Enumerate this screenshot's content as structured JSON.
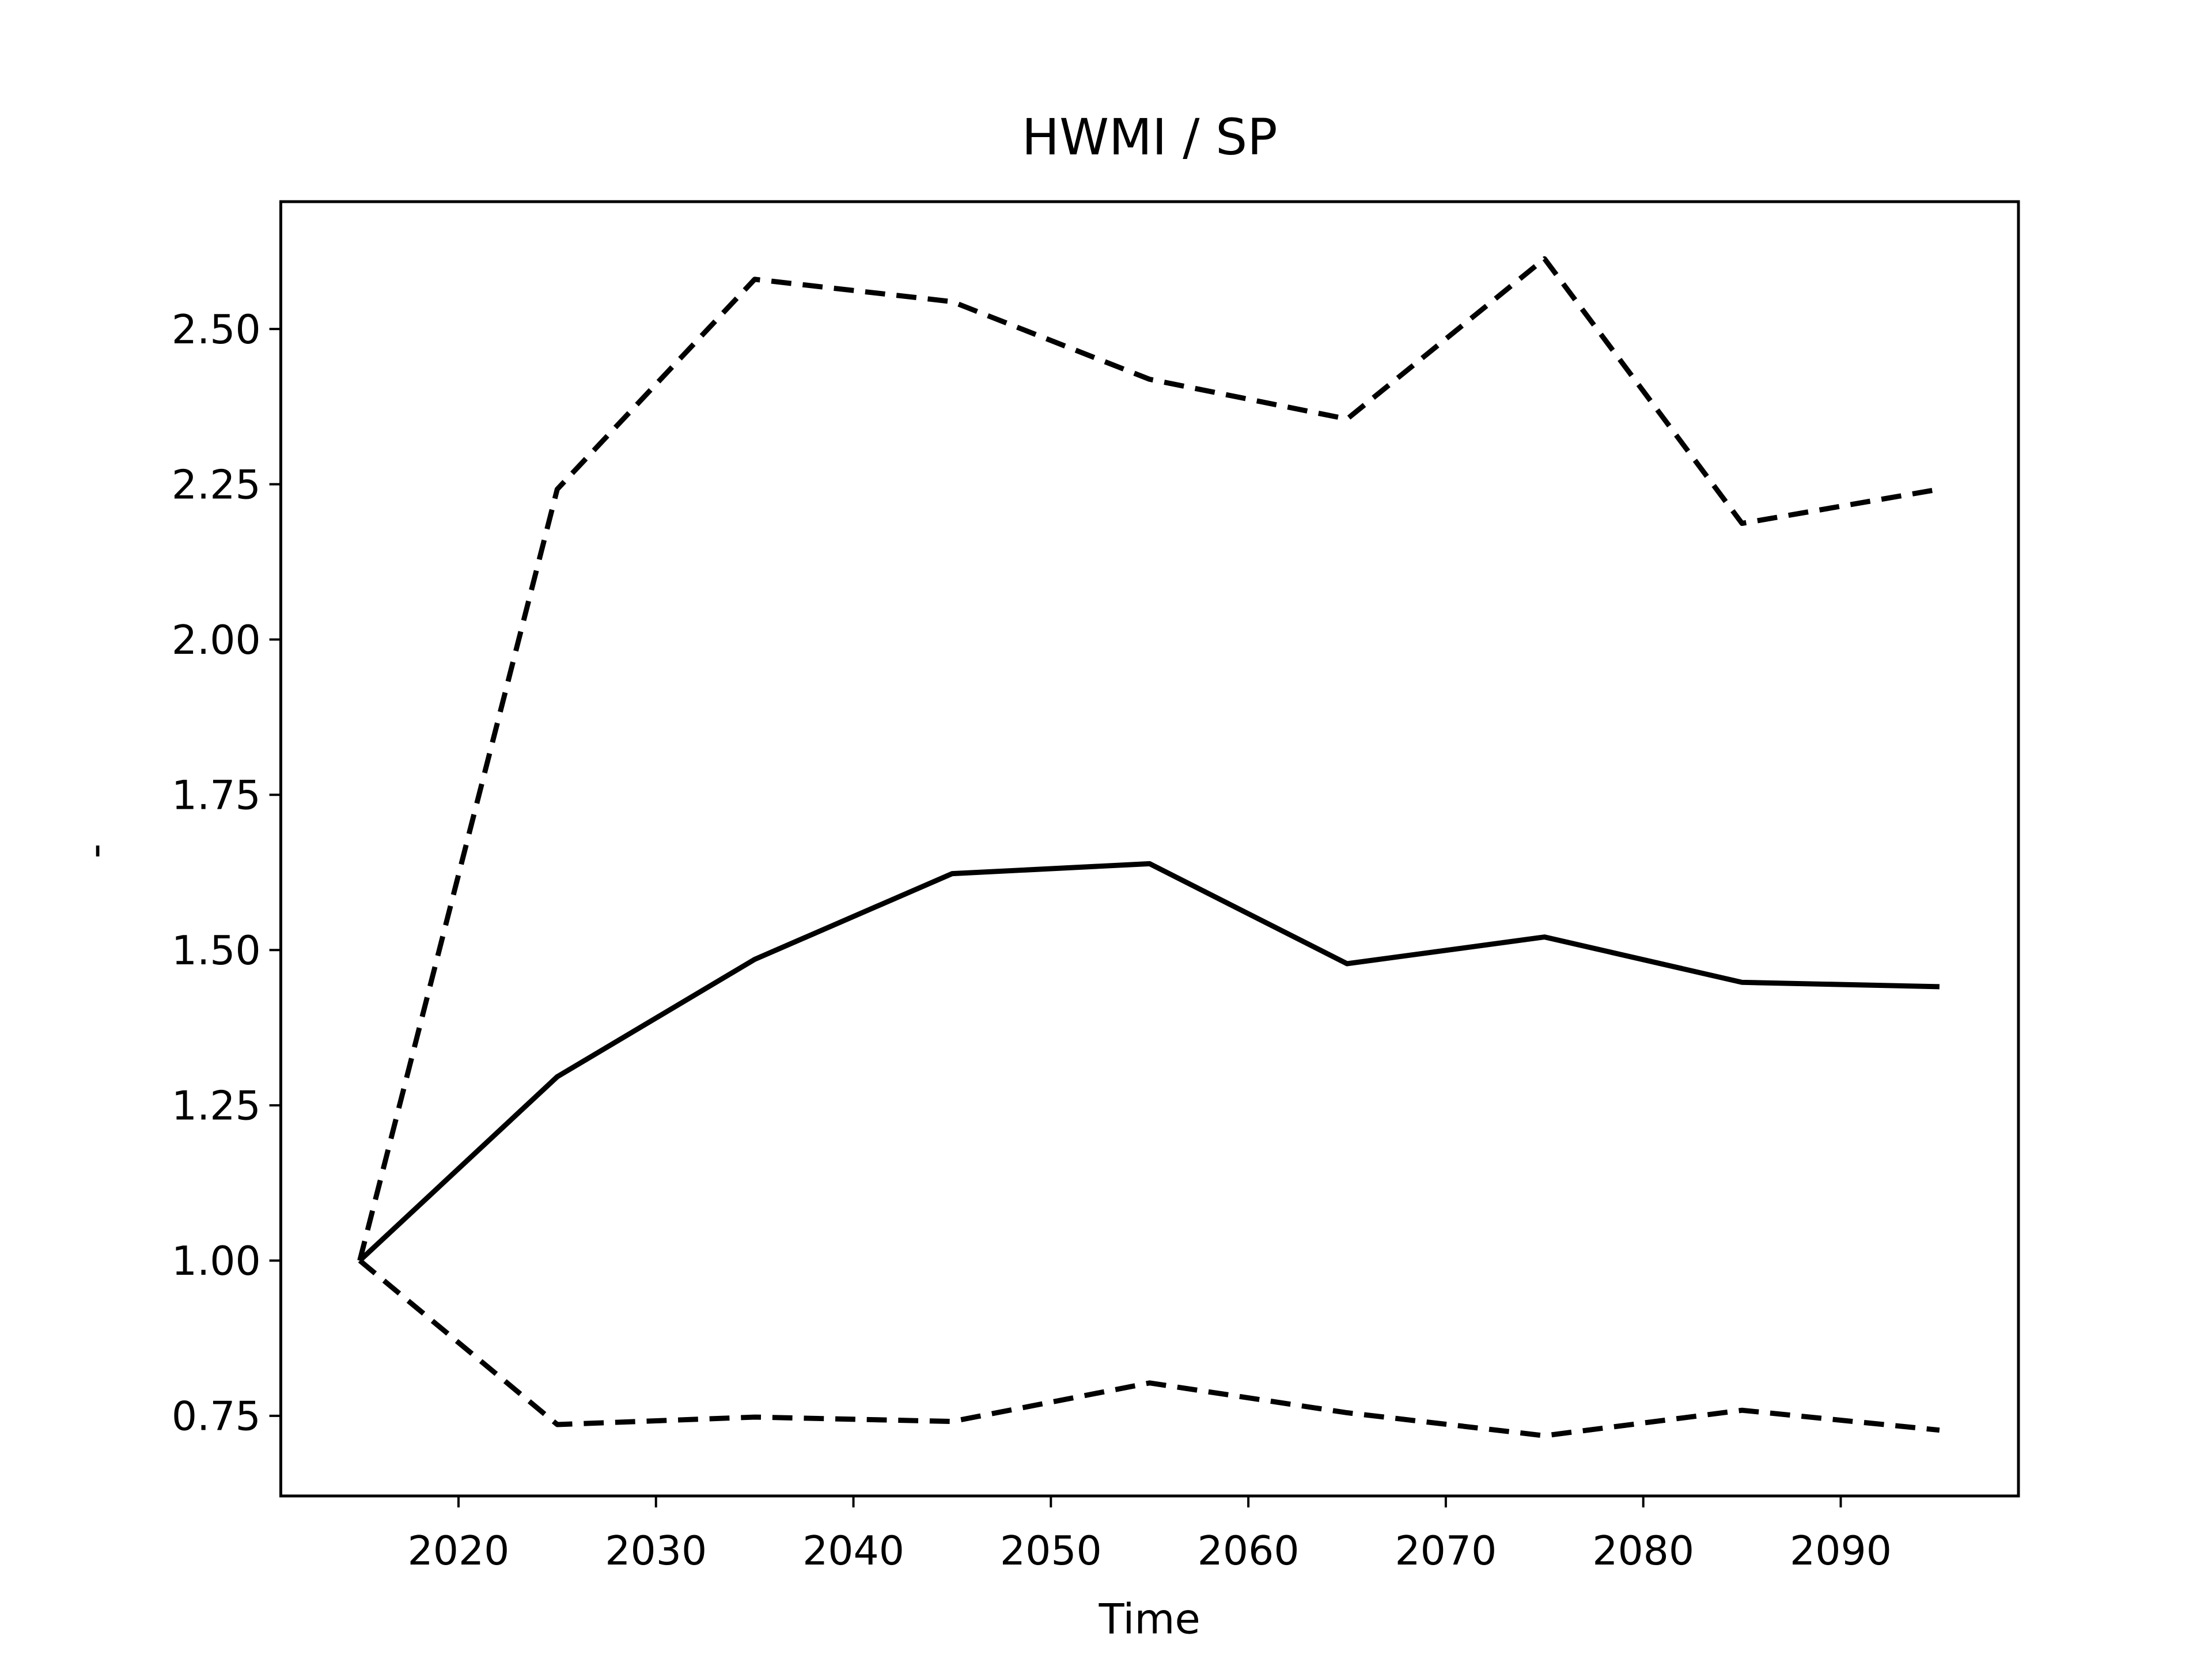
{
  "chart_data": {
    "type": "line",
    "title": "HWMI / SP",
    "xlabel": "Time",
    "ylabel": "-",
    "x": [
      2015,
      2025,
      2035,
      2045,
      2055,
      2065,
      2075,
      2085,
      2095
    ],
    "series": [
      {
        "color": "#000000",
        "dash": false,
        "values": [
          1.0,
          1.296,
          1.485,
          1.623,
          1.639,
          1.478,
          1.521,
          1.448,
          1.441
        ]
      },
      {
        "color": "#000000",
        "dash": true,
        "values": [
          1.0,
          2.242,
          2.58,
          2.544,
          2.419,
          2.355,
          2.613,
          2.187,
          2.242
        ]
      },
      {
        "color": "#000000",
        "dash": true,
        "values": [
          1.0,
          0.736,
          0.748,
          0.741,
          0.803,
          0.755,
          0.718,
          0.759,
          0.727
        ]
      }
    ],
    "xlim": [
      2011,
      2099
    ],
    "ylim": [
      0.621,
      2.705
    ],
    "xticks": [
      2020,
      2030,
      2040,
      2050,
      2060,
      2070,
      2080,
      2090
    ],
    "yticks": [
      {
        "value": 0.75,
        "label": "0.75"
      },
      {
        "value": 1.0,
        "label": "1.00"
      },
      {
        "value": 1.25,
        "label": "1.25"
      },
      {
        "value": 1.5,
        "label": "1.50"
      },
      {
        "value": 1.75,
        "label": "1.75"
      },
      {
        "value": 2.0,
        "label": "2.00"
      },
      {
        "value": 2.25,
        "label": "2.25"
      },
      {
        "value": 2.5,
        "label": "2.50"
      }
    ],
    "grid": false
  }
}
